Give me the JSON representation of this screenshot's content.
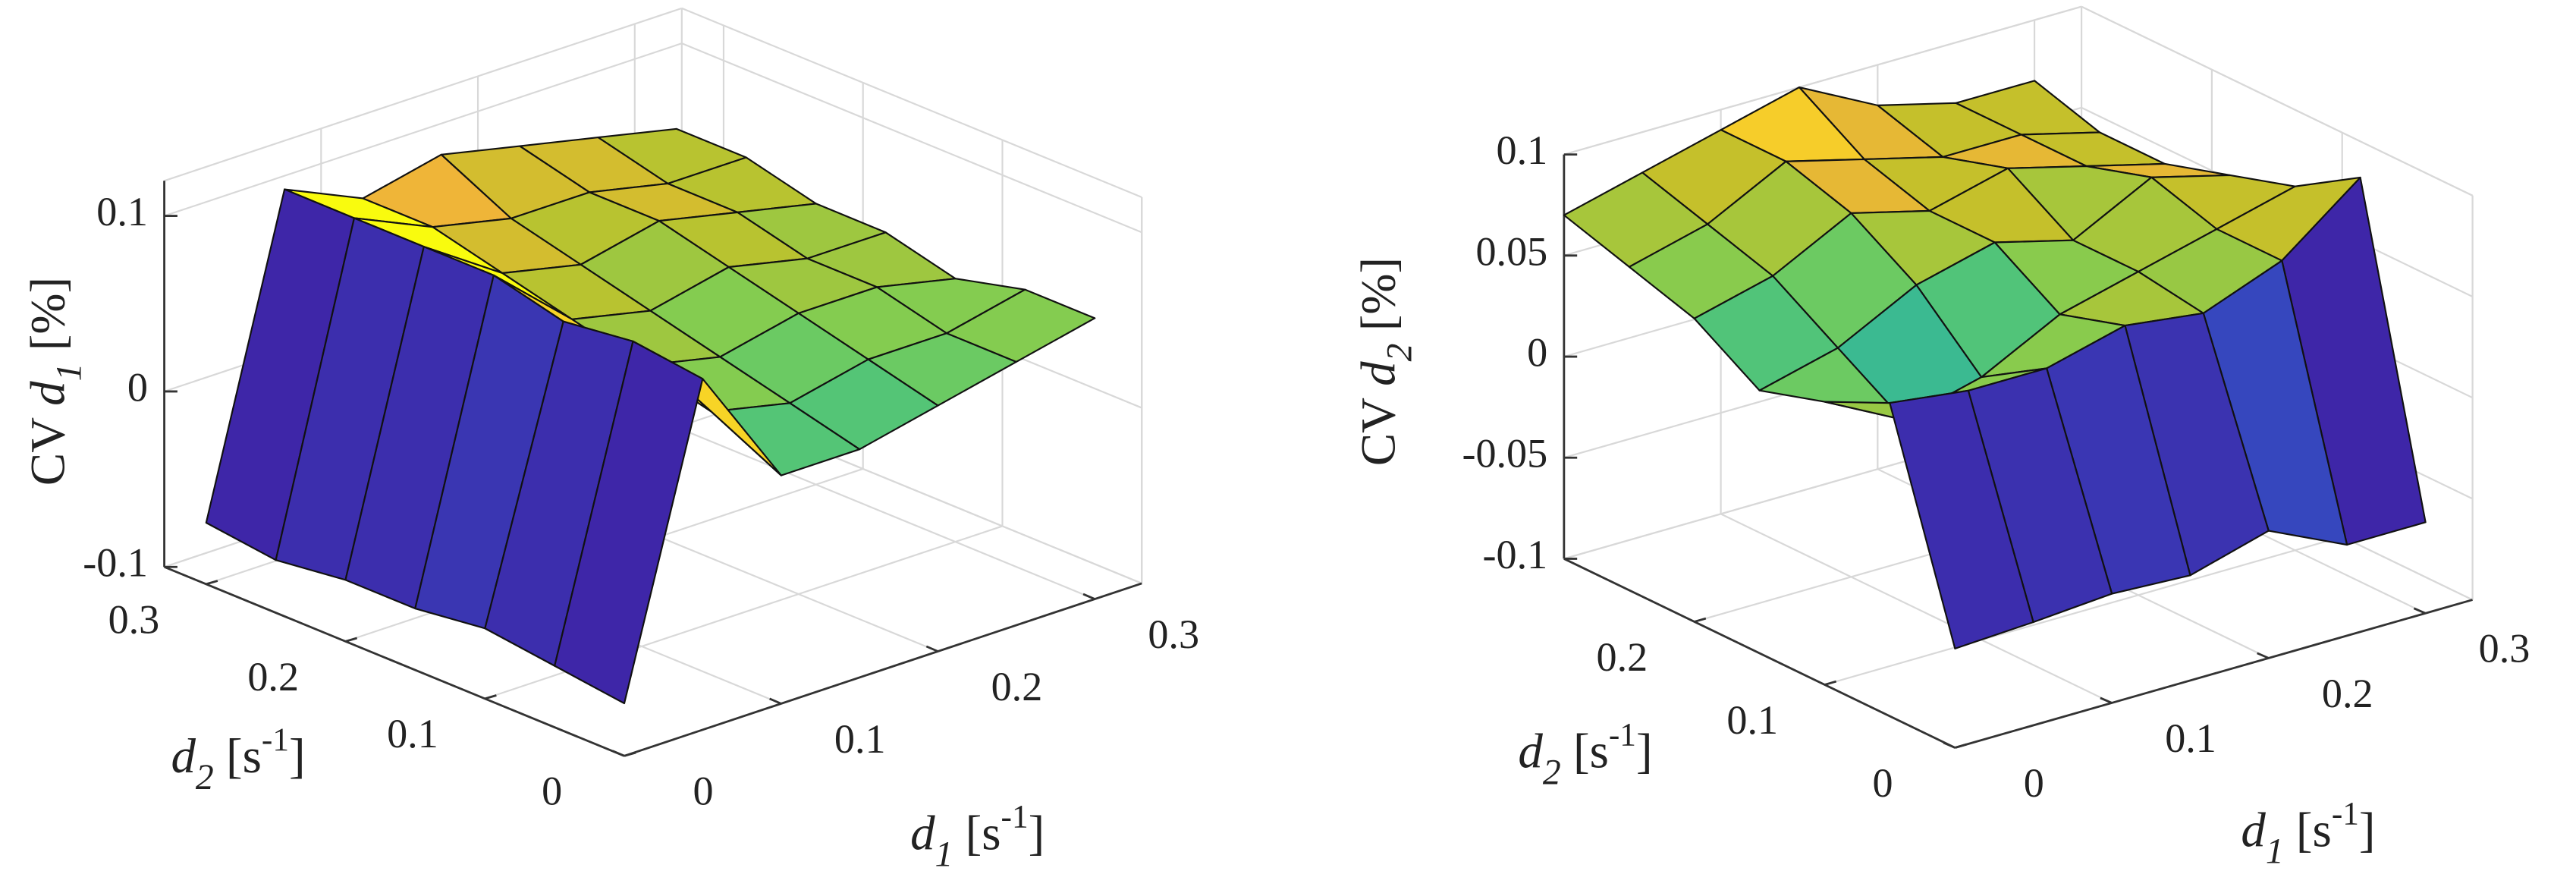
{
  "chart_data": [
    {
      "type": "surface",
      "colormap": "parula",
      "grid": true,
      "x": [
        0,
        0.05,
        0.1,
        0.15,
        0.2,
        0.25,
        0.3
      ],
      "y": [
        0,
        0.05,
        0.1,
        0.15,
        0.2,
        0.25,
        0.3
      ],
      "z": [
        [
          -0.07,
          0.1,
          0.03,
          0.03,
          0.04,
          0.05,
          0.06
        ],
        [
          -0.065,
          0.105,
          0.05,
          0.04,
          0.05,
          0.05,
          0.06
        ],
        [
          -0.06,
          0.1,
          0.06,
          0.05,
          0.06,
          0.06,
          0.05
        ],
        [
          -0.065,
          0.11,
          0.07,
          0.06,
          0.07,
          0.06,
          0.06
        ],
        [
          -0.065,
          0.11,
          0.08,
          0.07,
          0.08,
          0.07,
          0.06
        ],
        [
          -0.07,
          0.11,
          0.09,
          0.08,
          0.08,
          0.07,
          0.07
        ],
        [
          -0.065,
          0.11,
          0.09,
          0.1,
          0.09,
          0.08,
          0.07
        ]
      ],
      "xlim": [
        0,
        0.33
      ],
      "ylim": [
        0,
        0.33
      ],
      "zlim": [
        -0.1,
        0.12
      ],
      "xticks": [
        0,
        0.1,
        0.2,
        0.3
      ],
      "yticks": [
        0,
        0.1,
        0.2,
        0.3
      ],
      "zticks": [
        -0.1,
        0,
        0.1
      ],
      "xlabel": [
        "d",
        "1",
        " [s",
        "-1",
        "]"
      ],
      "ylabel": [
        "d",
        "2",
        " [s",
        "-1",
        "]"
      ],
      "zlabel": [
        "CV  ",
        "d",
        "1",
        " [%]"
      ]
    },
    {
      "type": "surface",
      "colormap": "parula",
      "grid": true,
      "x": [
        0,
        0.05,
        0.1,
        0.15,
        0.2,
        0.25,
        0.3
      ],
      "y": [
        0,
        0.05,
        0.1,
        0.15,
        0.2,
        0.25,
        0.3
      ],
      "z": [
        [
          -0.051,
          -0.049,
          -0.046,
          -0.048,
          -0.037,
          -0.055,
          -0.055
        ],
        [
          0.055,
          0.05,
          0.05,
          0.06,
          0.055,
          0.07,
          0.1
        ],
        [
          0.04,
          0.02,
          0.03,
          0.05,
          0.06,
          0.07,
          0.08
        ],
        [
          0.03,
          0.04,
          0.06,
          0.07,
          0.06,
          0.08,
          0.07
        ],
        [
          0.05,
          0.06,
          0.08,
          0.07,
          0.08,
          0.07,
          0.06
        ],
        [
          0.06,
          0.07,
          0.09,
          0.08,
          0.07,
          0.07,
          0.06
        ],
        [
          0.07,
          0.08,
          0.09,
          0.1,
          0.08,
          0.07,
          0.07
        ]
      ],
      "xlim": [
        0,
        0.33
      ],
      "ylim": [
        0,
        0.3
      ],
      "zlim": [
        -0.1,
        0.1
      ],
      "xticks": [
        0,
        0.1,
        0.2,
        0.3
      ],
      "yticks": [
        0,
        0.1,
        0.2
      ],
      "zticks": [
        -0.1,
        -0.05,
        0,
        0.05,
        0.1
      ],
      "xlabel": [
        "d",
        "1",
        " [s",
        "-1",
        "]"
      ],
      "ylabel": [
        "d",
        "2",
        " [s",
        "-1",
        "]"
      ],
      "zlabel": [
        "CV  ",
        "d",
        "2",
        " [%]"
      ]
    }
  ]
}
